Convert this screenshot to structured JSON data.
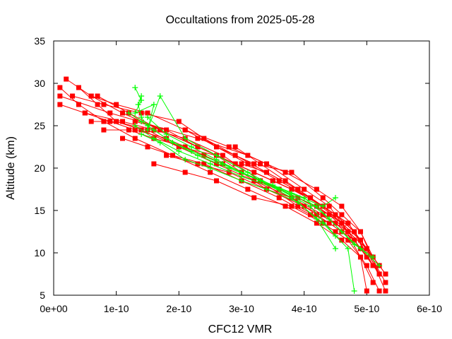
{
  "chart_data": {
    "type": "scatter",
    "title": "Occultations from 2025-05-28",
    "xlabel": "CFC12 VMR",
    "ylabel": "Altitude (km)",
    "xlim": [
      0,
      6e-10
    ],
    "ylim": [
      5,
      35
    ],
    "x_ticks": [
      "0e+00",
      "1e-10",
      "2e-10",
      "3e-10",
      "4e-10",
      "5e-10",
      "6e-10"
    ],
    "y_ticks": [
      "5",
      "10",
      "15",
      "20",
      "25",
      "30",
      "35"
    ],
    "x_tick_values": [
      0,
      1e-10,
      2e-10,
      3e-10,
      4e-10,
      5e-10,
      6e-10
    ],
    "y_tick_values": [
      5,
      10,
      15,
      20,
      25,
      30,
      35
    ],
    "grid": false,
    "legend": "none",
    "series": [
      {
        "color": "#ff0000",
        "marker": "square",
        "profiles": [
          {
            "x": [
              1e-11,
              9e-11,
              2.3e-10,
              3.1e-10,
              3.7e-10,
              4.2e-10,
              4.6e-10,
              4.9e-10,
              5.1e-10,
              5.3e-10
            ],
            "y": [
              28.5,
              26.5,
              23.5,
              21.5,
              19.5,
              17.5,
              15.5,
              12.5,
              9.5,
              7.5
            ]
          },
          {
            "x": [
              2e-11,
              6e-11,
              1.1e-10,
              1.7e-10,
              2.3e-10,
              2.9e-10,
              3.5e-10,
              4.1e-10,
              4.5e-10,
              4.8e-10,
              5e-10,
              5.2e-10
            ],
            "y": [
              30.5,
              28.5,
              26.5,
              24.5,
              22.5,
              20.5,
              18.5,
              16.5,
              14.5,
              12.5,
              10.5,
              8.5
            ]
          },
          {
            "x": [
              1e-11,
              4e-11,
              8e-11,
              1.3e-10,
              1.9e-10,
              2.5e-10,
              3.1e-10,
              3.7e-10,
              4.2e-10,
              4.6e-10,
              4.9e-10,
              5.1e-10
            ],
            "y": [
              29.5,
              27.5,
              25.5,
              23.5,
              21.5,
              19.5,
              17.5,
              15.5,
              13.5,
              11.5,
              9.5,
              6.5
            ]
          },
          {
            "x": [
              4e-11,
              7e-11,
              1e-10,
              1.4e-10,
              2e-10,
              2.6e-10,
              3.2e-10,
              3.8e-10,
              4.3e-10,
              4.7e-10,
              5e-10
            ],
            "y": [
              29.5,
              27.5,
              25.5,
              24.5,
              22.5,
              20.5,
              18.5,
              16.5,
              14.5,
              12.5,
              10.5
            ]
          },
          {
            "x": [
              1e-11,
              5e-11,
              1.1e-10,
              1.6e-10,
              2.1e-10,
              2.7e-10,
              3.3e-10,
              3.9e-10,
              4.4e-10,
              4.8e-10,
              5.1e-10
            ],
            "y": [
              27.5,
              26.5,
              25.5,
              24.5,
              23.5,
              21.5,
              18.5,
              15.5,
              13.5,
              11.5,
              8.5
            ]
          },
          {
            "x": [
              3e-11,
              8e-11,
              1.4e-10,
              2e-10,
              2.6e-10,
              3.2e-10,
              3.8e-10,
              4.3e-10,
              4.6e-10,
              4.9e-10,
              5.2e-10
            ],
            "y": [
              28.5,
              27.5,
              26.5,
              25.5,
              22.5,
              20.5,
              19.5,
              16.5,
              14.5,
              12.5,
              7.5
            ]
          },
          {
            "x": [
              6e-11,
              1e-10,
              1.5e-10,
              2.1e-10,
              2.8e-10,
              3.4e-10,
              4e-10,
              4.4e-10,
              4.7e-10,
              5e-10,
              5.3e-10
            ],
            "y": [
              28.5,
              27.5,
              26.5,
              24.5,
              22.5,
              20.5,
              17.5,
              15.5,
              12.5,
              10.5,
              6.5
            ]
          },
          {
            "x": [
              7e-11,
              1.2e-10,
              1.7e-10,
              2.3e-10,
              2.9e-10,
              3.5e-10,
              4.1e-10,
              4.5e-10,
              4.8e-10,
              5e-10
            ],
            "y": [
              28.5,
              26.5,
              24.5,
              22.5,
              20.5,
              18.5,
              16.5,
              14.5,
              12.5,
              9.5
            ]
          },
          {
            "x": [
              5e-11,
              9e-11,
              1.3e-10,
              1.8e-10,
              2.4e-10,
              3e-10,
              3.6e-10,
              4.2e-10,
              4.6e-10,
              4.9e-10,
              5.2e-10
            ],
            "y": [
              26.5,
              25.5,
              24.5,
              23.5,
              21.5,
              19.5,
              17.5,
              15.5,
              13.5,
              11.5,
              8.5
            ]
          },
          {
            "x": [
              6e-11,
              1e-10,
              1.5e-10,
              2e-10,
              2.6e-10,
              3.2e-10,
              3.8e-10,
              4.3e-10,
              4.7e-10,
              5e-10,
              5.3e-10
            ],
            "y": [
              25.5,
              25.5,
              24.5,
              22.5,
              21.5,
              19.5,
              17.5,
              15.5,
              13.5,
              10.5,
              7.5
            ]
          },
          {
            "x": [
              8e-11,
              1.2e-10,
              1.6e-10,
              2.1e-10,
              2.7e-10,
              3.3e-10,
              3.9e-10,
              4.4e-10,
              4.7e-10,
              5e-10
            ],
            "y": [
              24.5,
              24.5,
              23.5,
              22.5,
              20.5,
              18.5,
              16.5,
              14.5,
              12.5,
              9.5
            ]
          },
          {
            "x": [
              1.1e-10,
              1.5e-10,
              1.9e-10,
              2.4e-10,
              3e-10,
              3.6e-10,
              4.1e-10,
              4.5e-10,
              4.9e-10,
              5.2e-10
            ],
            "y": [
              23.5,
              22.5,
              21.5,
              20.5,
              18.5,
              16.5,
              14.5,
              12.5,
              10.5,
              7.5
            ]
          },
          {
            "x": [
              1.6e-10,
              2.1e-10,
              2.6e-10,
              3.2e-10,
              3.8e-10,
              4.3e-10,
              4.7e-10,
              5e-10,
              5.2e-10
            ],
            "y": [
              20.5,
              19.5,
              18.5,
              16.5,
              15.5,
              13.5,
              11.5,
              8.5,
              5.5
            ]
          },
          {
            "x": [
              1.8e-10,
              2.3e-10,
              2.8e-10,
              3.4e-10,
              4e-10,
              4.5e-10,
              4.8e-10,
              5.1e-10
            ],
            "y": [
              21.5,
              20.5,
              19.5,
              17.5,
              15.5,
              13.5,
              11.5,
              8.5
            ]
          },
          {
            "x": [
              1.3e-10,
              1.8e-10,
              2.3e-10,
              2.9e-10,
              3.5e-10,
              4.1e-10,
              4.6e-10,
              4.9e-10,
              5e-10
            ],
            "y": [
              25.5,
              24.5,
              22.5,
              20.5,
              18.5,
              16.5,
              13.5,
              9.5,
              5.5
            ]
          },
          {
            "x": [
              2.1e-10,
              2.6e-10,
              3.1e-10,
              3.6e-10,
              4.1e-10,
              4.5e-10,
              4.8e-10,
              5.1e-10
            ],
            "y": [
              24.5,
              22.5,
              20.5,
              18.5,
              16.5,
              14.5,
              12.5,
              8.5
            ]
          },
          {
            "x": [
              2.4e-10,
              2.9e-10,
              3.4e-10,
              3.9e-10,
              4.3e-10,
              4.7e-10,
              5e-10,
              5.3e-10
            ],
            "y": [
              23.5,
              21.5,
              19.5,
              17.5,
              15.5,
              13.5,
              10.5,
              5.5
            ]
          },
          {
            "x": [
              2.9e-10,
              3.3e-10,
              3.7e-10,
              4.1e-10,
              4.5e-10,
              4.8e-10,
              5.1e-10
            ],
            "y": [
              22.5,
              20.5,
              18.5,
              16.5,
              14.5,
              11.5,
              8.5
            ]
          },
          {
            "x": [
              2.6e-10,
              3e-10,
              3.4e-10,
              3.8e-10,
              4.2e-10,
              4.6e-10,
              4.9e-10
            ],
            "y": [
              21.5,
              19.5,
              17.5,
              16.5,
              14.5,
              12.5,
              10.5
            ]
          },
          {
            "x": [
              3e-10,
              3.4e-10,
              3.9e-10,
              4.3e-10,
              4.6e-10,
              4.9e-10,
              5.2e-10
            ],
            "y": [
              20.5,
              19.5,
              17.5,
              15.5,
              13.5,
              11.5,
              7.5
            ]
          }
        ]
      },
      {
        "color": "#00ff00",
        "marker": "plus",
        "profiles": [
          {
            "x": [
              1.3e-10,
              1.4e-10,
              1.3e-10,
              1.6e-10,
              1.5e-10,
              1.7e-10,
              2.1e-10,
              2.6e-10,
              3.1e-10,
              3.6e-10,
              4.2e-10,
              4.6e-10,
              4.9e-10,
              5.2e-10
            ],
            "y": [
              29.5,
              28.0,
              26.5,
              27.5,
              24.5,
              28.5,
              23.5,
              21.5,
              19.5,
              17.5,
              15.5,
              12.5,
              10.5,
              8.5
            ]
          },
          {
            "x": [
              1.4e-10,
              1.35e-10,
              1.4e-10,
              1.5e-10,
              1.8e-10,
              2.2e-10,
              2.7e-10,
              3.3e-10,
              3.8e-10,
              4.3e-10,
              4.7e-10,
              4.8e-10
            ],
            "y": [
              28.5,
              27.5,
              26.0,
              25.0,
              23.5,
              22.0,
              20.5,
              18.5,
              16.5,
              13.5,
              10.5,
              5.5
            ]
          },
          {
            "x": [
              1.2e-10,
              1.4e-10,
              1.6e-10,
              1.9e-10,
              2.3e-10,
              2.8e-10,
              3.3e-10,
              3.8e-10,
              4.3e-10,
              4.5e-10
            ],
            "y": [
              26.5,
              25.5,
              24.5,
              23.0,
              21.5,
              20.0,
              18.5,
              17.0,
              15.5,
              16.5
            ]
          },
          {
            "x": [
              1.5e-10,
              1.8e-10,
              2.2e-10,
              2.6e-10,
              3e-10,
              3.5e-10,
              4e-10,
              4.4e-10,
              4.8e-10,
              5.1e-10
            ],
            "y": [
              26.0,
              24.0,
              22.5,
              21.0,
              19.5,
              18.0,
              16.5,
              14.0,
              11.0,
              9.5
            ]
          },
          {
            "x": [
              1.3e-10,
              1.6e-10,
              2e-10,
              2.5e-10,
              3e-10,
              3.6e-10,
              4.1e-10,
              4.5e-10
            ],
            "y": [
              25.0,
              23.5,
              22.0,
              20.5,
              19.0,
              17.5,
              15.5,
              12.0
            ]
          },
          {
            "x": [
              1.4e-10,
              1.7e-10,
              2.1e-10,
              2.5e-10,
              3e-10,
              3.4e-10,
              3.9e-10,
              4.2e-10,
              4.5e-10
            ],
            "y": [
              24.0,
              23.0,
              21.0,
              20.0,
              18.5,
              17.5,
              16.0,
              14.0,
              10.5
            ]
          }
        ]
      }
    ]
  }
}
